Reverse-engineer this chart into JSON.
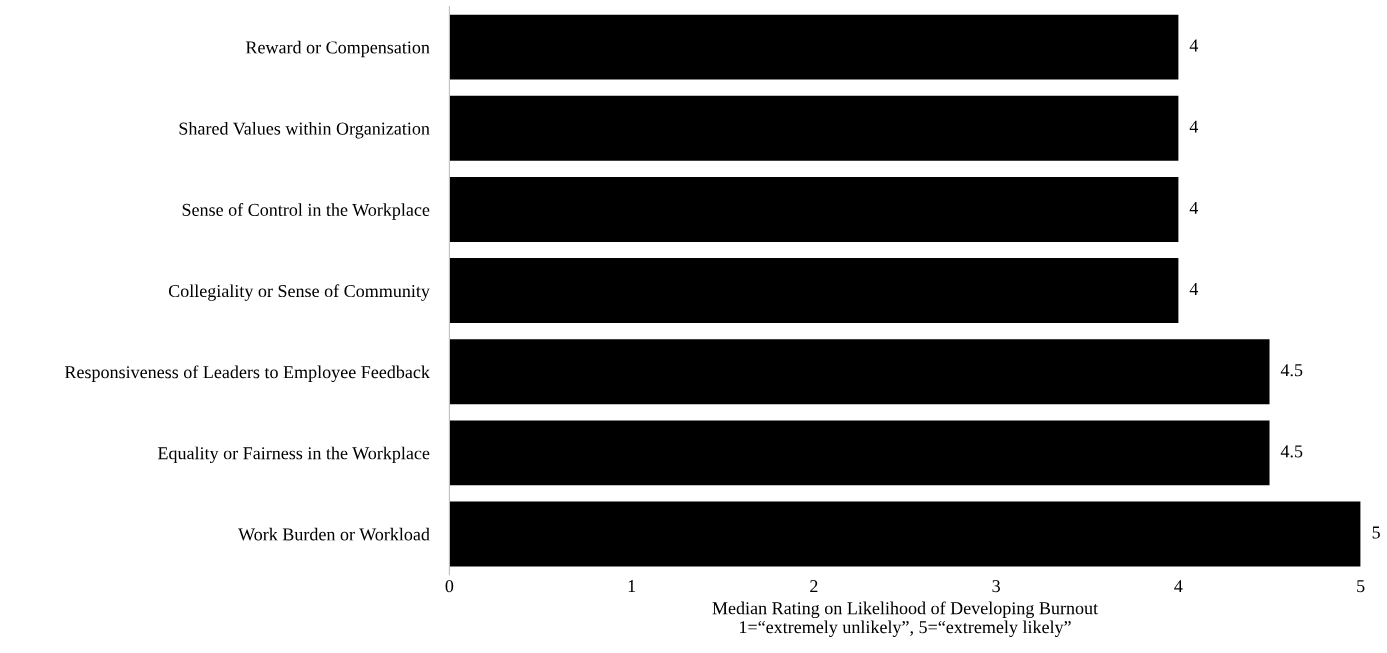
{
  "chart_data": {
    "type": "bar",
    "orientation": "horizontal",
    "categories": [
      "Reward or Compensation",
      "Shared Values within Organization",
      "Sense of Control in the Workplace",
      "Collegiality or Sense of Community",
      "Responsiveness of Leaders to Employee Feedback",
      "Equality or Fairness in the Workplace",
      "Work Burden or Workload"
    ],
    "values": [
      4,
      4,
      4,
      4,
      4.5,
      4.5,
      5
    ],
    "color": "#000000",
    "xlim": [
      0,
      5
    ],
    "xticks": [
      0,
      1,
      2,
      3,
      4,
      5
    ],
    "xlabel": "Median Rating on Likelihood of Developing Burnout\n1=“extremely unlikely”, 5=“extremely likely”",
    "data_labels": true,
    "grid": false,
    "legend": false
  }
}
